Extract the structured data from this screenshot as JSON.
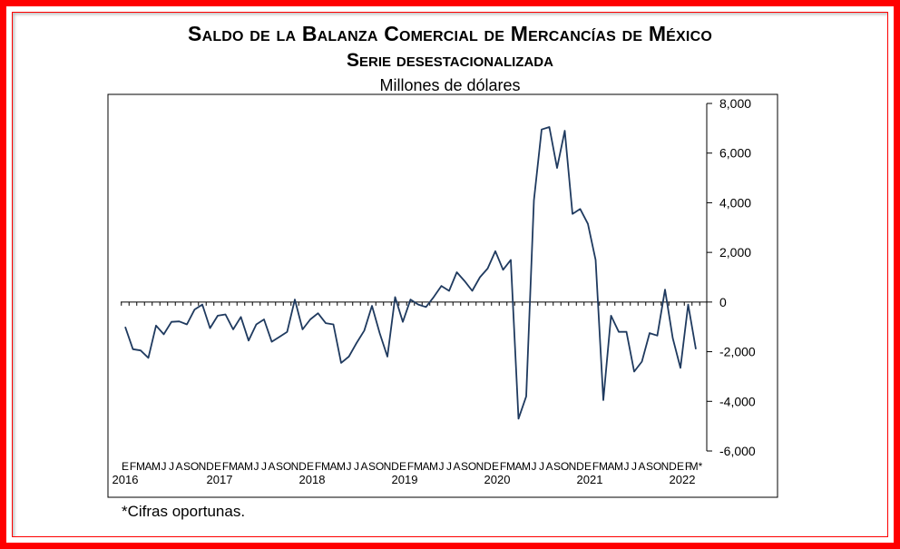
{
  "header": {
    "title": "Saldo de la Balanza Comercial de Mercancías de México",
    "subtitle": "Serie desestacionalizada",
    "units": "Millones de dólares"
  },
  "footnote": "*Cifras oportunas.",
  "colors": {
    "frame": "#ff0000",
    "line": "#1f3a5f"
  },
  "chart_data": {
    "type": "line",
    "title": "Saldo de la Balanza Comercial de Mercancías de México",
    "subtitle": "Serie desestacionalizada",
    "ylabel": "Millones de dólares",
    "xlabel": "",
    "ylim": [
      -6000,
      8000
    ],
    "y_ticks": [
      8000,
      6000,
      4000,
      2000,
      0,
      -2000,
      -4000,
      -6000
    ],
    "y_tick_labels": [
      "8,000",
      "6,000",
      "4,000",
      "2,000",
      "0",
      "-2,000",
      "-4,000",
      "-6,000"
    ],
    "y_axis_side": "right",
    "grid": false,
    "month_letters": [
      "E",
      "F",
      "M",
      "A",
      "M",
      "J",
      "J",
      "A",
      "S",
      "O",
      "N",
      "D"
    ],
    "last_month_label": "M*",
    "years": [
      "2016",
      "2017",
      "2018",
      "2019",
      "2020",
      "2021",
      "2022"
    ],
    "series": [
      {
        "values": [
          -1000,
          -1900,
          -1950,
          -2250,
          -950,
          -1300,
          -800,
          -780,
          -900,
          -300,
          -100,
          -1050,
          -550,
          -500,
          -1100,
          -600,
          -1550,
          -900,
          -700,
          -1600,
          -1400,
          -1200,
          100,
          -1100,
          -700,
          -450,
          -850,
          -900,
          -2450,
          -2200,
          -1650,
          -1150,
          -150,
          -1250,
          -2200,
          200,
          -800,
          100,
          -100,
          -200,
          200,
          650,
          450,
          1200,
          850,
          450,
          1000,
          1350,
          2050,
          1300,
          1700,
          -4700,
          -3800,
          4100,
          6950,
          7050,
          5400,
          6900,
          3550,
          3750,
          3150,
          1700,
          -3950,
          -550,
          -1200,
          -1200,
          -2800,
          -2400,
          -1250,
          -1350,
          500,
          -1450,
          -2650,
          -100,
          -1900
        ]
      }
    ]
  }
}
